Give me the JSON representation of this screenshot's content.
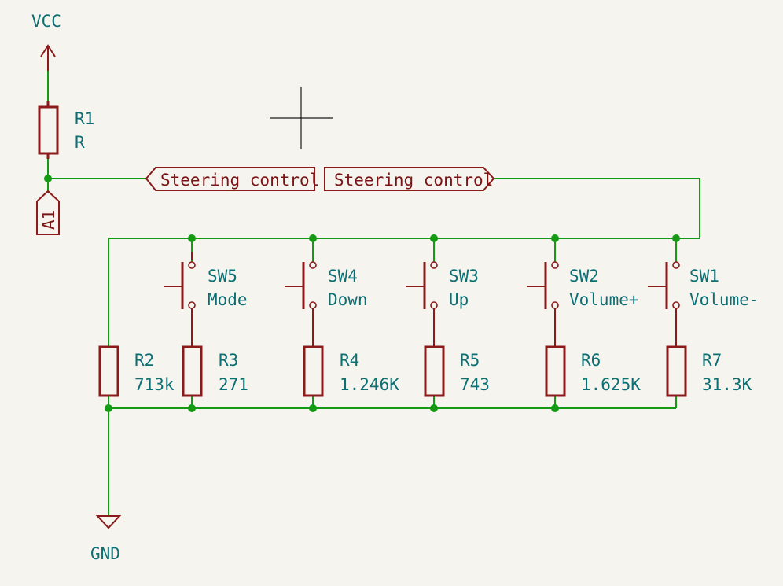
{
  "power": {
    "vcc": "VCC",
    "gnd": "GND"
  },
  "net_labels": {
    "hier_left": "Steering control",
    "hier_right": "Steering control",
    "pin_a1": "A1"
  },
  "resistors": [
    {
      "ref": "R1",
      "value": "R"
    },
    {
      "ref": "R2",
      "value": "713k"
    },
    {
      "ref": "R3",
      "value": "271"
    },
    {
      "ref": "R4",
      "value": "1.246K"
    },
    {
      "ref": "R5",
      "value": "743"
    },
    {
      "ref": "R6",
      "value": "1.625K"
    },
    {
      "ref": "R7",
      "value": "31.3K"
    }
  ],
  "switches": [
    {
      "ref": "SW5",
      "value": "Mode"
    },
    {
      "ref": "SW4",
      "value": "Down"
    },
    {
      "ref": "SW3",
      "value": "Up"
    },
    {
      "ref": "SW2",
      "value": "Volume+"
    },
    {
      "ref": "SW1",
      "value": "Volume-"
    }
  ],
  "colors": {
    "wire": "#159a15",
    "component": "#8b1a1a",
    "text": "#0b6f73",
    "background": "#f5f4ef"
  }
}
